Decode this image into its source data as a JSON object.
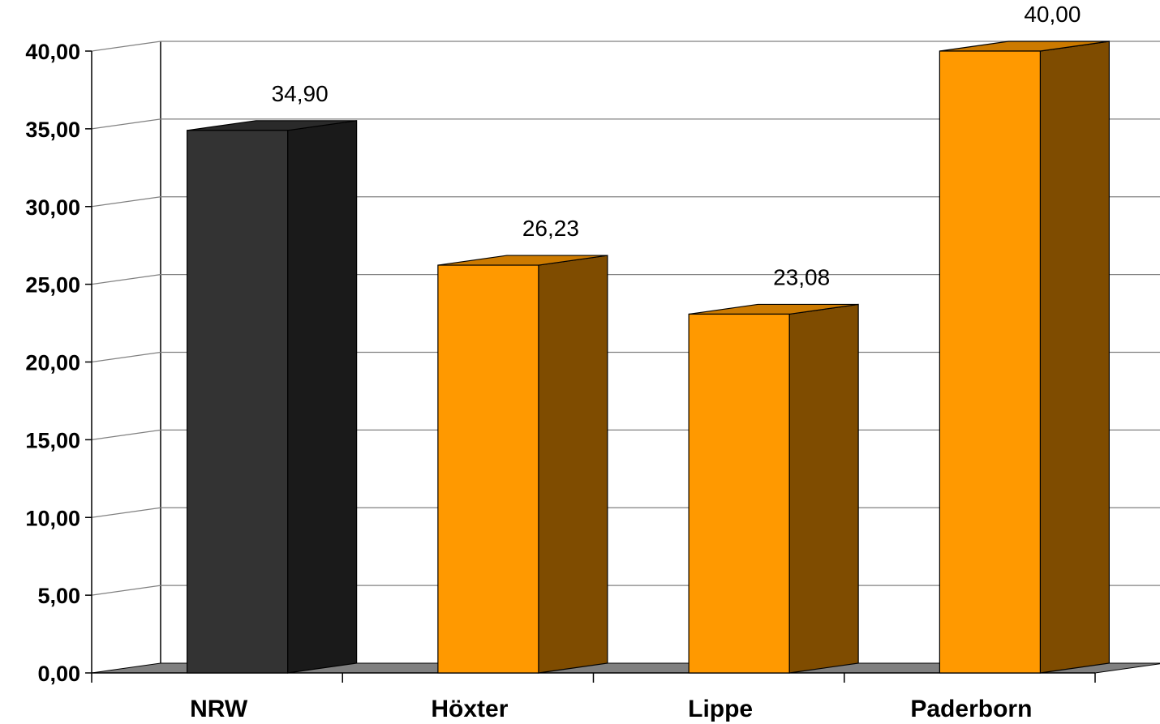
{
  "chart_data": {
    "type": "bar",
    "categories": [
      "NRW",
      "Höxter",
      "Lippe",
      "Paderborn"
    ],
    "values": [
      34.9,
      26.23,
      23.08,
      40.0
    ],
    "value_labels": [
      "34,90",
      "26,23",
      "23,08",
      "40,00"
    ],
    "ylim": [
      0,
      40
    ],
    "yticks": [
      0,
      5,
      10,
      15,
      20,
      25,
      30,
      35,
      40
    ],
    "ytick_labels": [
      "0,00",
      "5,00",
      "10,00",
      "15,00",
      "20,00",
      "25,00",
      "30,00",
      "35,00",
      "40,00"
    ],
    "grid": true,
    "legend": "none",
    "style": "3d",
    "bar_colors": [
      {
        "front": "#333333",
        "side": "#1a1a1a",
        "top": "#2a2a2a"
      },
      {
        "front": "#ff9900",
        "side": "#7f4c00",
        "top": "#cc7a00"
      },
      {
        "front": "#ff9900",
        "side": "#7f4c00",
        "top": "#cc7a00"
      },
      {
        "front": "#ff9900",
        "side": "#7f4c00",
        "top": "#cc7a00"
      }
    ],
    "floor_color": "#808080",
    "gridline_color": "#808080"
  }
}
